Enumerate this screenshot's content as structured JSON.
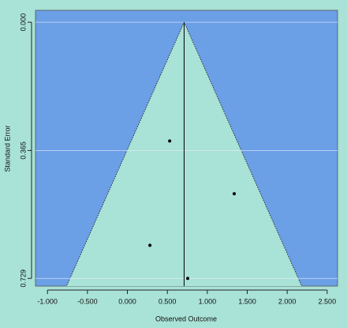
{
  "chart_data": {
    "type": "funnel",
    "x_label": "Observed Outcome",
    "y_label": "Standard Error",
    "x": [
      0.529,
      1.337,
      0.282,
      0.755
    ],
    "values": [
      0.338,
      0.488,
      0.635,
      0.729
    ],
    "estimate": 0.71,
    "color": "#000000",
    "xlim": [
      -1.15,
      2.63
    ],
    "ylim": [
      -0.034,
      0.751
    ],
    "y_inverted": true,
    "xticks": [
      {
        "value": -1,
        "label": "-1.000"
      },
      {
        "value": -0.5,
        "label": "-0.500"
      },
      {
        "value": 0,
        "label": "0.000"
      },
      {
        "value": 0.5,
        "label": "0.500"
      },
      {
        "value": 1,
        "label": "1.000"
      },
      {
        "value": 1.5,
        "label": "1.500"
      },
      {
        "value": 2,
        "label": "2.000"
      },
      {
        "value": 2.5,
        "label": "2.500"
      }
    ],
    "yticks": [
      {
        "value": 0,
        "label": "0.000"
      },
      {
        "value": 0.365,
        "label": "0.365"
      },
      {
        "value": 0.729,
        "label": "0.729"
      }
    ],
    "grid": true
  }
}
